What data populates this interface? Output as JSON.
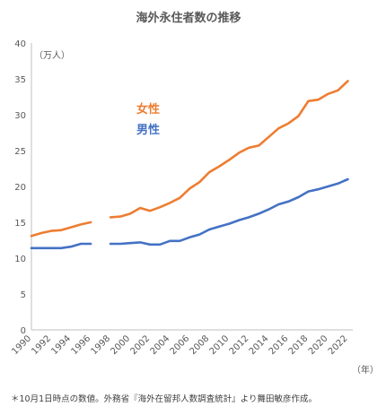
{
  "chart_data": {
    "type": "line",
    "title": "海外永住者数の推移",
    "ylabel": "（万人）",
    "xlabel": "（年）",
    "ylim": [
      0,
      40
    ],
    "yticks": [
      0,
      5,
      10,
      15,
      20,
      25,
      30,
      35,
      40
    ],
    "xticks": [
      1990,
      1992,
      1994,
      1996,
      1998,
      2000,
      2002,
      2004,
      2006,
      2008,
      2010,
      2012,
      2014,
      2016,
      2018,
      2020,
      2022
    ],
    "xlim": [
      1990,
      2022.5
    ],
    "grid": false,
    "legend": "inline",
    "x": [
      1990,
      1991,
      1992,
      1993,
      1994,
      1995,
      1996,
      1997,
      1998,
      1999,
      2000,
      2001,
      2002,
      2003,
      2004,
      2005,
      2006,
      2007,
      2008,
      2009,
      2010,
      2011,
      2012,
      2013,
      2014,
      2015,
      2016,
      2017,
      2018,
      2019,
      2020,
      2021,
      2022
    ],
    "series": [
      {
        "name": "女性",
        "color": "#ED7D31",
        "values": [
          13.1,
          13.5,
          13.8,
          13.9,
          14.3,
          14.7,
          15.0,
          null,
          15.7,
          15.8,
          16.2,
          17.0,
          16.6,
          17.1,
          17.7,
          18.4,
          19.7,
          20.6,
          22.0,
          22.8,
          23.7,
          24.7,
          25.4,
          25.7,
          26.9,
          28.1,
          28.8,
          29.8,
          31.9,
          32.1,
          32.9,
          33.4,
          34.7
        ]
      },
      {
        "name": "男性",
        "color": "#4472C4",
        "values": [
          11.4,
          11.4,
          11.4,
          11.4,
          11.6,
          12.0,
          12.0,
          null,
          12.0,
          12.0,
          12.1,
          12.2,
          11.9,
          11.9,
          12.4,
          12.4,
          12.9,
          13.3,
          14.0,
          14.4,
          14.8,
          15.3,
          15.7,
          16.2,
          16.8,
          17.5,
          17.9,
          18.5,
          19.3,
          19.6,
          20.0,
          20.4,
          21.0
        ]
      }
    ],
    "footnote": "＊10月1日時点の数値。外務省『海外在留邦人数調査統計』より舞田敏彦作成。"
  }
}
